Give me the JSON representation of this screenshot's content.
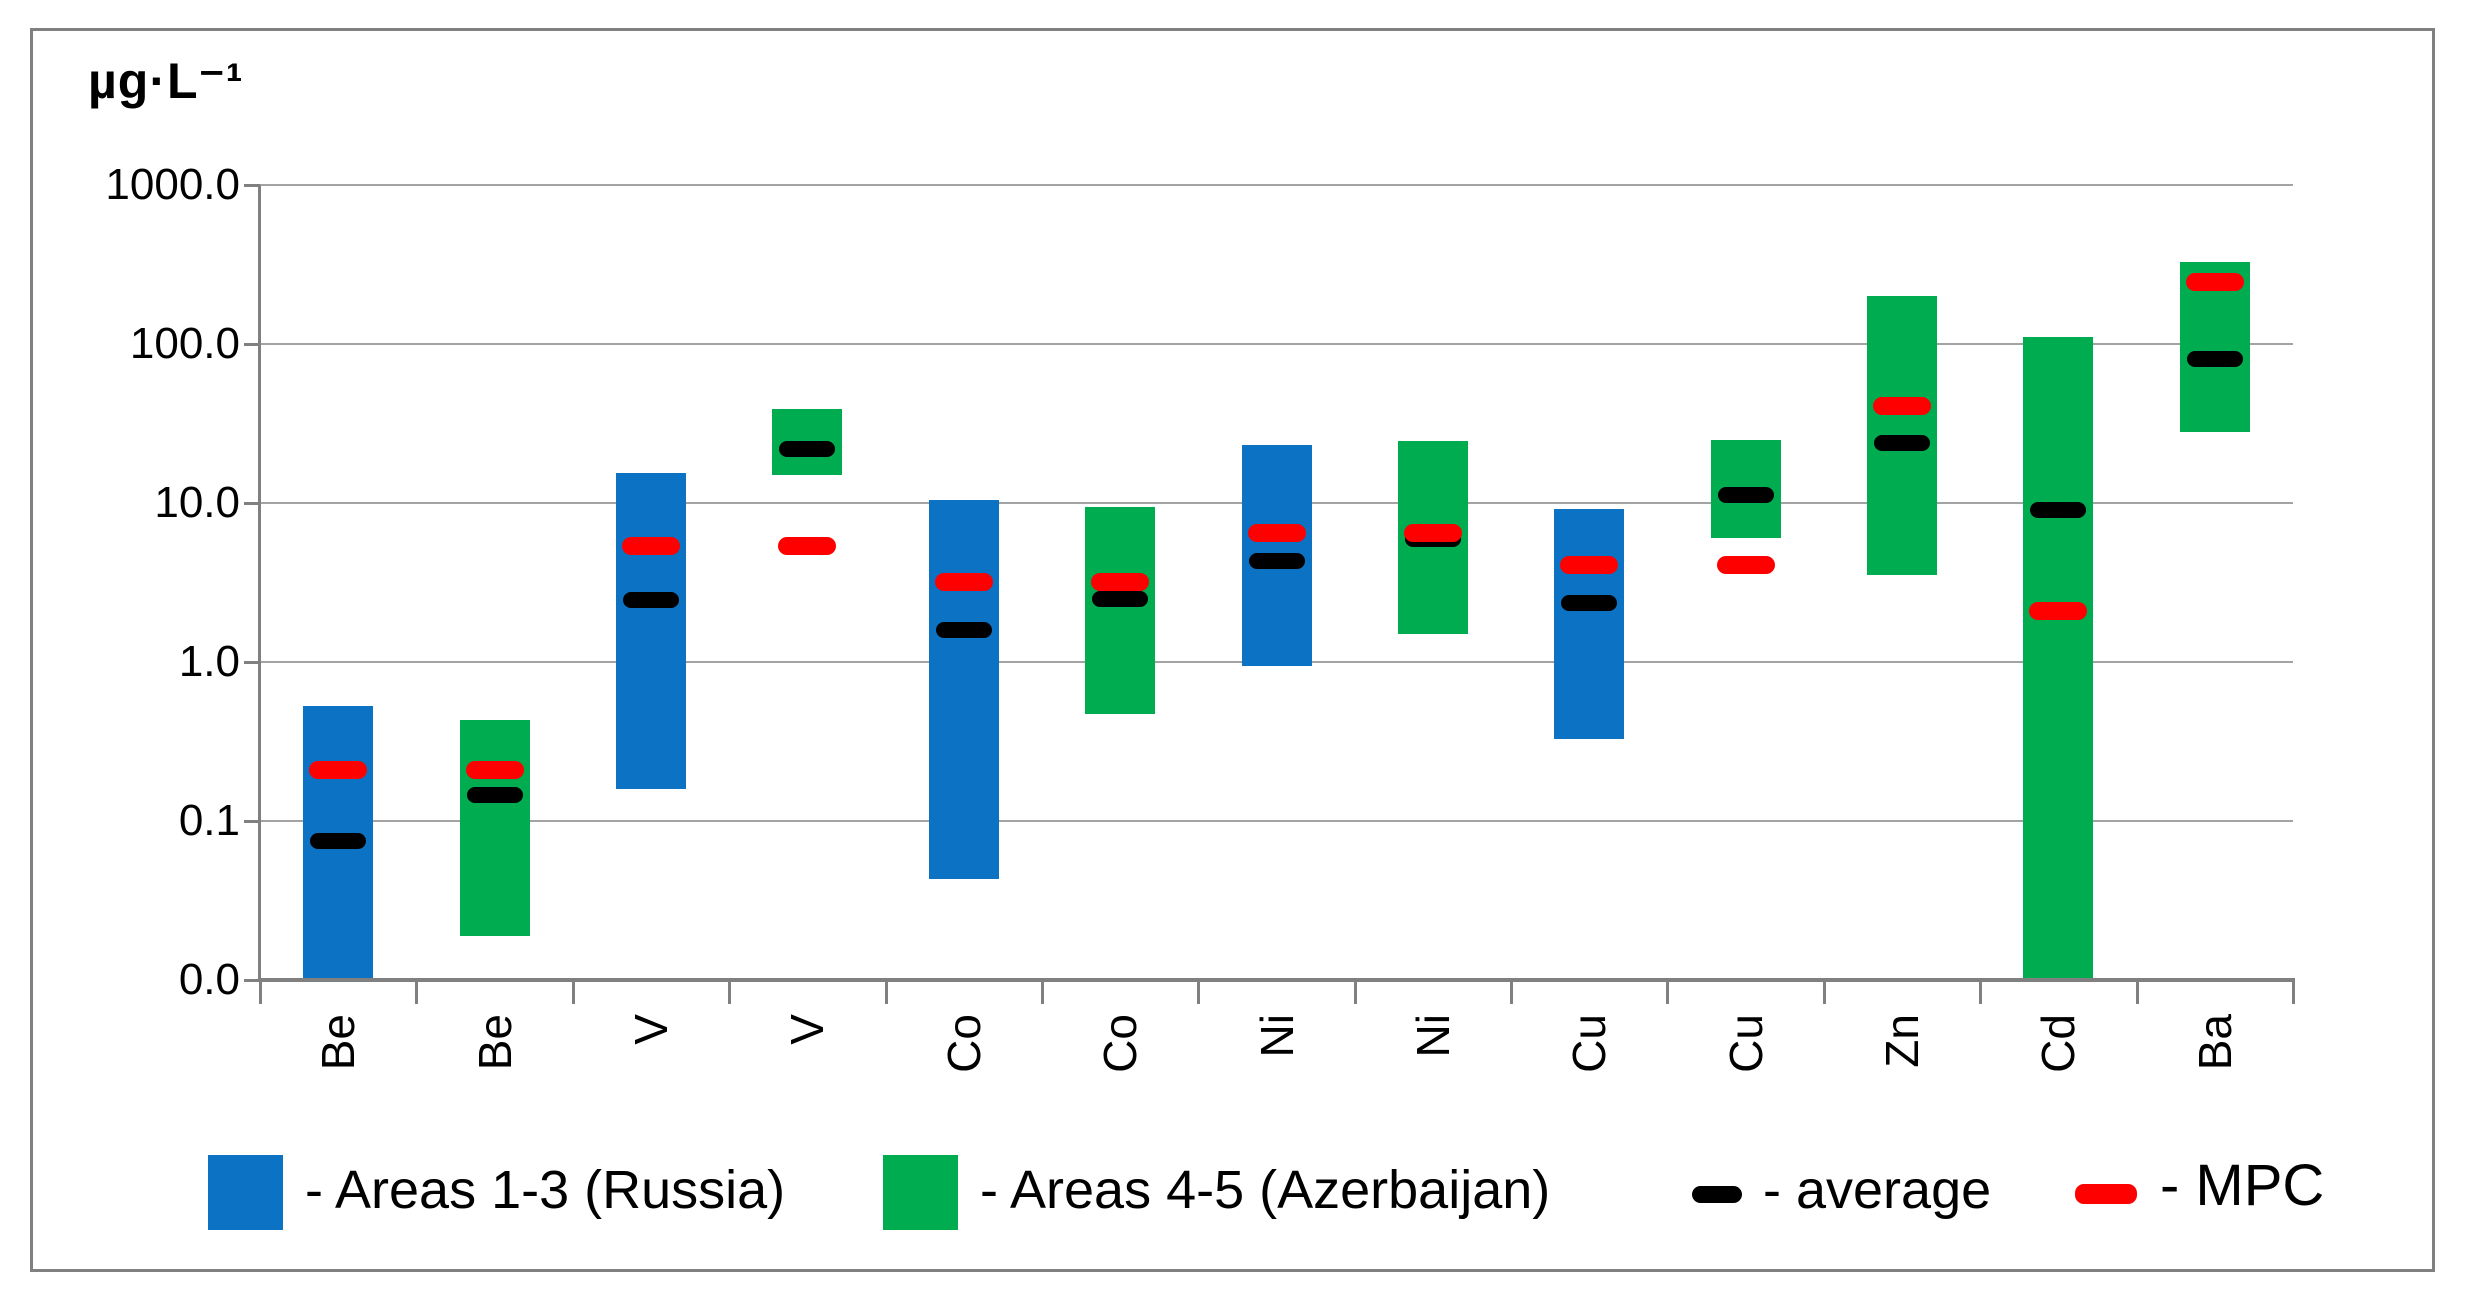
{
  "frame_title": "",
  "colors": {
    "russia": "#0b72c4",
    "azerbaijan": "#00ac50",
    "average": "#000000",
    "mpc": "#ff0000",
    "grid": "#a3a3a3",
    "axis": "#808080",
    "frame": "#808080",
    "text": "#000000"
  },
  "chart_data": {
    "type": "bar",
    "subtype": "floating-range-bars-log-scale",
    "unit_label": "µg·L⁻¹",
    "y_axis": {
      "scale": "log",
      "min": 0.01,
      "max": 1000,
      "tick_labels": [
        "1000.0",
        "100.0",
        "10.0",
        "1.0",
        "0.1",
        "0.0"
      ],
      "tick_values": [
        1000,
        100,
        10,
        1,
        0.1,
        0.01
      ],
      "grid": true
    },
    "categories": [
      "Be",
      "Be",
      "V",
      "V",
      "Co",
      "Co",
      "Ni",
      "Ni",
      "Cu",
      "Cu",
      "Zn",
      "Cd",
      "Ba"
    ],
    "bars": [
      {
        "element": "Be",
        "area": "russia",
        "min": 0.01,
        "max": 0.53,
        "average": 0.075,
        "mpc": 0.21
      },
      {
        "element": "Be",
        "area": "azerbaijan",
        "min": 0.019,
        "max": 0.43,
        "average": 0.145,
        "mpc": 0.21
      },
      {
        "element": "V",
        "area": "russia",
        "min": 0.16,
        "max": 15.5,
        "average": 2.45,
        "mpc": 5.4
      },
      {
        "element": "V",
        "area": "azerbaijan",
        "min": 15,
        "max": 39,
        "average": 22,
        "mpc": 5.4
      },
      {
        "element": "Co",
        "area": "russia",
        "min": 0.043,
        "max": 10.5,
        "average": 1.6,
        "mpc": 3.2
      },
      {
        "element": "Co",
        "area": "azerbaijan",
        "min": 0.47,
        "max": 9.5,
        "average": 2.5,
        "mpc": 3.2
      },
      {
        "element": "Ni",
        "area": "russia",
        "min": 0.95,
        "max": 23,
        "average": 4.3,
        "mpc": 6.5
      },
      {
        "element": "Ni",
        "area": "azerbaijan",
        "min": 1.5,
        "max": 24.5,
        "average": 5.9,
        "mpc": 6.5
      },
      {
        "element": "Cu",
        "area": "russia",
        "min": 0.33,
        "max": 9.2,
        "average": 2.35,
        "mpc": 4.1
      },
      {
        "element": "Cu",
        "area": "azerbaijan",
        "min": 6,
        "max": 25,
        "average": 11.3,
        "mpc": 4.1
      },
      {
        "element": "Zn",
        "area": "azerbaijan",
        "min": 3.5,
        "max": 200,
        "average": 24,
        "mpc": 41
      },
      {
        "element": "Cd",
        "area": "azerbaijan",
        "min": 0.01,
        "max": 110,
        "average": 9,
        "mpc": 2.1
      },
      {
        "element": "Ba",
        "area": "azerbaijan",
        "min": 28,
        "max": 330,
        "average": 80,
        "mpc": 245
      }
    ],
    "legend_position": "bottom"
  },
  "legend": {
    "items": [
      {
        "label": "- Areas 1-3 (Russia)",
        "swatch": "russia"
      },
      {
        "label": "- Areas 4-5 (Azerbaijan)",
        "swatch": "azerbaijan"
      },
      {
        "label": "- average",
        "swatch": "average"
      },
      {
        "label": "- MPC",
        "swatch": "mpc"
      }
    ]
  }
}
